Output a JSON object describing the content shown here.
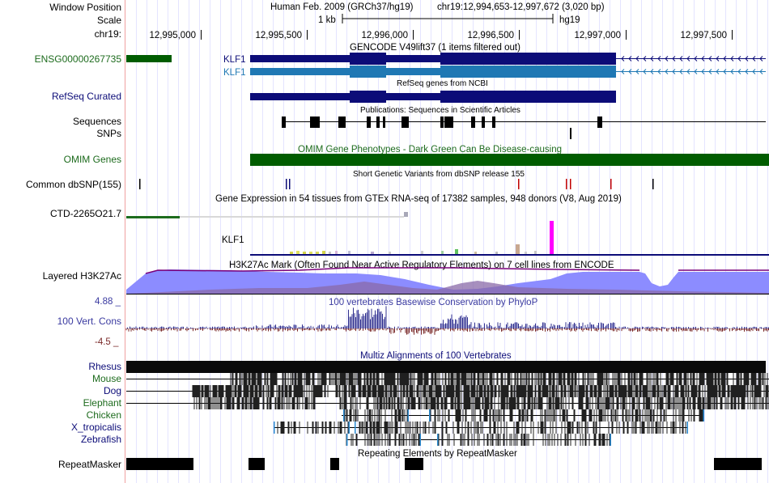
{
  "header": {
    "window_position_label": "Window Position",
    "scale_label": "Scale",
    "chrom_label": "chr19:",
    "assembly_text": "Human Feb. 2009 (GRCh37/hg19)",
    "position_text": "chr19:12,994,653-12,997,672 (3,020 bp)",
    "scale_bar_text": "1 kb",
    "scale_db_text": "hg19",
    "ruler_ticks": [
      "12,995,000",
      "12,995,500",
      "12,996,000",
      "12,996,500",
      "12,997,000",
      "12,997,500"
    ]
  },
  "colors": {
    "navy": "#0c0c78",
    "blue": "#1f78b4",
    "green": "#005c00",
    "dkgreen": "#1d6b1d",
    "h3k27ac": "#8c8cff",
    "purple": "#7a007a",
    "phylo_pos": "#303090",
    "phylo_neg": "#7a2a2a",
    "grid": "#e4e4ff",
    "magenta": "#ff00ff",
    "divider": "#f0a0a0"
  },
  "tracks": {
    "ensg_label": "ENSG00000267735",
    "gencode_title": "GENCODE V49lift37 (1 items filtered out)",
    "gene_name_1": "KLF1",
    "gene_name_2": "KLF1",
    "refseq_label": "RefSeq Curated",
    "refseq_title": "RefSeq genes from NCBI",
    "pubs_title": "Publications: Sequences in Scientific Articles",
    "sequences_label": "Sequences",
    "snps_label": "SNPs",
    "omim_label": "OMIM Genes",
    "omim_title": "OMIM Gene Phenotypes - Dark Green Can Be Disease-causing",
    "dbsnp_label": "Common dbSNP(155)",
    "dbsnp_title": "Short Genetic Variants from dbSNP release 155",
    "gtex_title": "Gene Expression in 54 tissues from GTEx RNA-seq of 17382 samples, 948 donors (V8, Aug 2019)",
    "ctd_label": "CTD-2265O21.7",
    "klf1_expr_label": "KLF1",
    "h3k27ac_label": "Layered H3K27Ac",
    "h3k27ac_title": "H3K27Ac Mark (Often Found Near Active Regulatory Elements) on 7 cell lines from ENCODE",
    "phylop_label": "100 Vert. Cons",
    "phylop_max": "4.88 _",
    "phylop_min": "-4.5 _",
    "phylop_title": "100 vertebrates Basewise Conservation by PhyloP",
    "multiz_title": "Multiz Alignments of 100 Vertebrates",
    "species": [
      "Rhesus",
      "Mouse",
      "Dog",
      "Elephant",
      "Chicken",
      "X_tropicalis",
      "Zebrafish"
    ],
    "repeat_label": "RepeatMasker",
    "repeat_title": "Repeating Elements by RepeatMasker"
  }
}
